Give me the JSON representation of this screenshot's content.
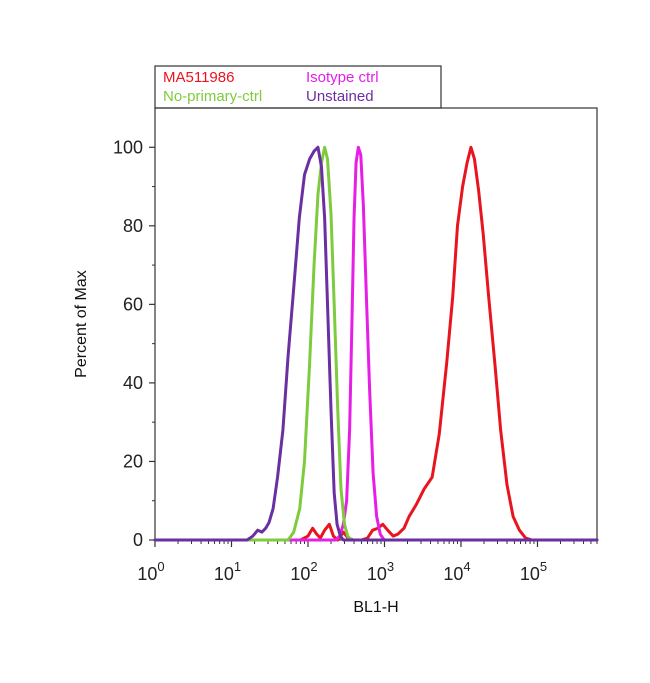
{
  "chart_data": {
    "type": "line",
    "xlabel": "BL1-H",
    "ylabel": "Percent of Max",
    "x_scale": "log",
    "xlim": [
      1,
      600000
    ],
    "ylim": [
      0,
      110
    ],
    "y_ticks": [
      "0",
      "20",
      "40",
      "60",
      "80",
      "100"
    ],
    "x_ticks": [
      {
        "base": "10",
        "exp": "0"
      },
      {
        "base": "10",
        "exp": "1"
      },
      {
        "base": "10",
        "exp": "2"
      },
      {
        "base": "10",
        "exp": "3"
      },
      {
        "base": "10",
        "exp": "4"
      },
      {
        "base": "10",
        "exp": "5"
      }
    ],
    "grid": false,
    "legend_position": "top-left",
    "series": [
      {
        "name": "MA511986",
        "color": "#e8141e",
        "points": [
          [
            1,
            0
          ],
          [
            80,
            0
          ],
          [
            100,
            1
          ],
          [
            115,
            3
          ],
          [
            130,
            1.5
          ],
          [
            145,
            0.5
          ],
          [
            165,
            2.5
          ],
          [
            190,
            4
          ],
          [
            215,
            1
          ],
          [
            245,
            0
          ],
          [
            290,
            2
          ],
          [
            335,
            0.5
          ],
          [
            390,
            0
          ],
          [
            500,
            0
          ],
          [
            600,
            0.5
          ],
          [
            700,
            2.5
          ],
          [
            820,
            3
          ],
          [
            950,
            4
          ],
          [
            1100,
            2.5
          ],
          [
            1300,
            1
          ],
          [
            1500,
            1.5
          ],
          [
            1800,
            3
          ],
          [
            2100,
            6
          ],
          [
            2600,
            9
          ],
          [
            3300,
            13
          ],
          [
            4200,
            16
          ],
          [
            5200,
            27
          ],
          [
            6500,
            45
          ],
          [
            7800,
            62
          ],
          [
            9000,
            80
          ],
          [
            10500,
            90
          ],
          [
            12000,
            96
          ],
          [
            13500,
            100
          ],
          [
            15000,
            97
          ],
          [
            17000,
            89
          ],
          [
            19500,
            78
          ],
          [
            23000,
            62
          ],
          [
            28000,
            44
          ],
          [
            33000,
            28
          ],
          [
            40000,
            14
          ],
          [
            48000,
            6
          ],
          [
            58000,
            2.5
          ],
          [
            70000,
            0.5
          ],
          [
            85000,
            0
          ],
          [
            600000,
            0
          ]
        ]
      },
      {
        "name": "Isotype ctrl",
        "color": "#e61ee6",
        "points": [
          [
            1,
            0
          ],
          [
            230,
            0
          ],
          [
            260,
            1
          ],
          [
            290,
            4
          ],
          [
            320,
            10
          ],
          [
            350,
            28
          ],
          [
            375,
            55
          ],
          [
            400,
            82
          ],
          [
            425,
            96
          ],
          [
            455,
            100
          ],
          [
            490,
            98
          ],
          [
            530,
            85
          ],
          [
            580,
            62
          ],
          [
            640,
            38
          ],
          [
            710,
            17
          ],
          [
            790,
            6
          ],
          [
            880,
            1.5
          ],
          [
            990,
            0
          ],
          [
            600000,
            0
          ]
        ]
      },
      {
        "name": "No-primary-ctrl",
        "color": "#7ecb3e",
        "points": [
          [
            1,
            0
          ],
          [
            55,
            0
          ],
          [
            65,
            2
          ],
          [
            78,
            8
          ],
          [
            90,
            20
          ],
          [
            105,
            45
          ],
          [
            120,
            70
          ],
          [
            135,
            88
          ],
          [
            150,
            96
          ],
          [
            165,
            100
          ],
          [
            180,
            97
          ],
          [
            200,
            83
          ],
          [
            220,
            60
          ],
          [
            245,
            33
          ],
          [
            270,
            13
          ],
          [
            300,
            4
          ],
          [
            330,
            1
          ],
          [
            370,
            0
          ],
          [
            600000,
            0
          ]
        ]
      },
      {
        "name": "Unstained",
        "color": "#6a2fa0",
        "points": [
          [
            1,
            0
          ],
          [
            16,
            0
          ],
          [
            19,
            1
          ],
          [
            22,
            2.5
          ],
          [
            25,
            2
          ],
          [
            28,
            3
          ],
          [
            31,
            4.5
          ],
          [
            35,
            8
          ],
          [
            40,
            16
          ],
          [
            47,
            28
          ],
          [
            55,
            47
          ],
          [
            65,
            64
          ],
          [
            77,
            82
          ],
          [
            90,
            93
          ],
          [
            105,
            97
          ],
          [
            120,
            99
          ],
          [
            135,
            100
          ],
          [
            150,
            95
          ],
          [
            165,
            82
          ],
          [
            180,
            60
          ],
          [
            200,
            33
          ],
          [
            220,
            12
          ],
          [
            240,
            4
          ],
          [
            265,
            1
          ],
          [
            290,
            0
          ],
          [
            600000,
            0
          ]
        ]
      }
    ]
  },
  "legend": {
    "items": [
      {
        "label": "MA511986",
        "color": "#e8141e"
      },
      {
        "label": "Isotype ctrl",
        "color": "#e61ee6"
      },
      {
        "label": "No-primary-ctrl",
        "color": "#7ecb3e"
      },
      {
        "label": "Unstained",
        "color": "#6a2fa0"
      }
    ]
  }
}
